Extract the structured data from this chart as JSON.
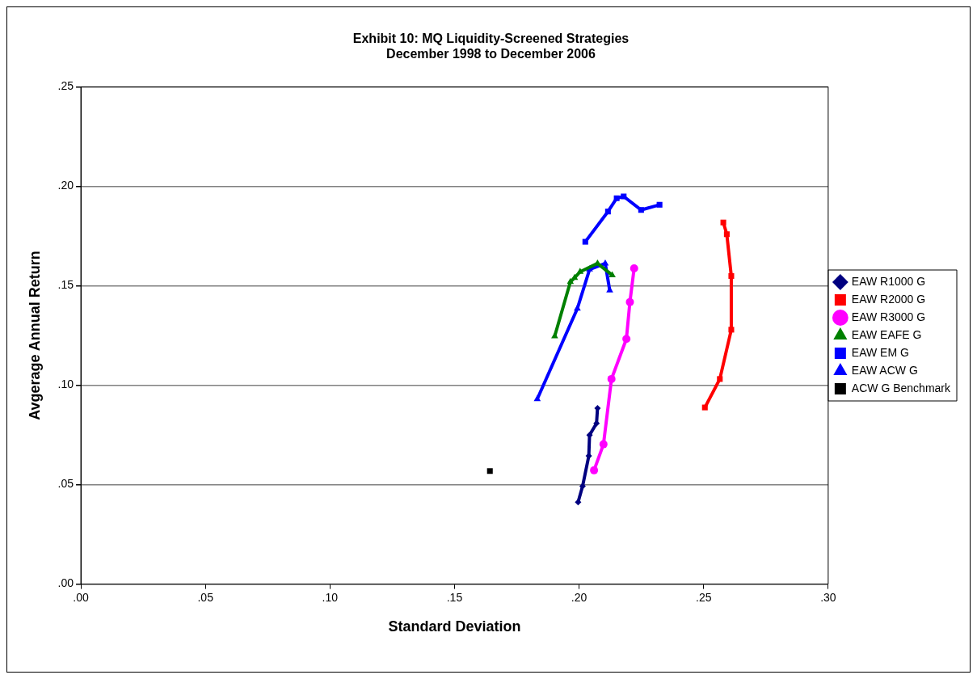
{
  "chart_data": {
    "type": "line",
    "title": "Exhibit 10: MQ Liquidity-Screened Strategies\nDecember 1998 to December 2006",
    "xlabel": "Standard Deviation",
    "ylabel": "Avgerage Annual Return",
    "xlim": [
      0,
      0.3
    ],
    "xticks": [
      {
        "value": 0,
        "label": ".00"
      },
      {
        "value": 0.05,
        "label": ".05"
      },
      {
        "value": 0.1,
        "label": ".10"
      },
      {
        "value": 0.15,
        "label": ".15"
      },
      {
        "value": 0.2,
        "label": ".20"
      },
      {
        "value": 0.25,
        "label": ".25"
      },
      {
        "value": 0.3,
        "label": ".30"
      }
    ],
    "ylim": [
      0,
      0.25
    ],
    "yticks": [
      {
        "value": 0,
        "label": ".00"
      },
      {
        "value": 0.05,
        "label": ".05"
      },
      {
        "value": 0.1,
        "label": ".10"
      },
      {
        "value": 0.15,
        "label": ".15"
      },
      {
        "value": 0.2,
        "label": ".20"
      },
      {
        "value": 0.25,
        "label": ".25"
      }
    ],
    "grid": "y",
    "legend": "right",
    "series": [
      {
        "name": "EAW R1000 G",
        "color": "#000080",
        "marker": "diamond",
        "x": [
          0.1996,
          0.2014,
          0.2039,
          0.2042,
          0.207,
          0.2074
        ],
        "values": [
          0.0412,
          0.0492,
          0.0644,
          0.0749,
          0.0808,
          0.0884
        ]
      },
      {
        "name": "EAW R2000 G",
        "color": "#ff0000",
        "marker": "square",
        "x": [
          0.2505,
          0.2565,
          0.2611,
          0.2611,
          0.2593,
          0.2579
        ],
        "values": [
          0.0888,
          0.1031,
          0.1279,
          0.1549,
          0.1759,
          0.1818
        ]
      },
      {
        "name": "EAW R3000 G",
        "color": "#ff00ff",
        "marker": "circle",
        "x": [
          0.206,
          0.2098,
          0.213,
          0.219,
          0.2204,
          0.2221
        ],
        "values": [
          0.0572,
          0.0703,
          0.1031,
          0.1233,
          0.1418,
          0.1587
        ]
      },
      {
        "name": "EAW EAFE G",
        "color": "#008000",
        "marker": "triangle",
        "x": [
          0.1902,
          0.1965,
          0.1982,
          0.2004,
          0.2074,
          0.2133
        ],
        "values": [
          0.1246,
          0.1519,
          0.154,
          0.157,
          0.1612,
          0.1553
        ]
      },
      {
        "name": "EAW EM G",
        "color": "#0000ff",
        "marker": "square",
        "x": [
          0.2025,
          0.2116,
          0.2151,
          0.2179,
          0.2249,
          0.2323
        ],
        "values": [
          0.1721,
          0.1873,
          0.194,
          0.1949,
          0.1881,
          0.1907
        ]
      },
      {
        "name": "EAW ACW G",
        "color": "#0000ff",
        "marker": "triangle",
        "x": [
          0.1832,
          0.1993,
          0.2042,
          0.2105,
          0.2123
        ],
        "values": [
          0.093,
          0.1385,
          0.1582,
          0.1612,
          0.1477
        ]
      },
      {
        "name": "ACW G Benchmark",
        "type": "scatter",
        "color": "#000000",
        "marker": "square",
        "x": [
          0.1642
        ],
        "values": [
          0.0568
        ]
      }
    ]
  }
}
